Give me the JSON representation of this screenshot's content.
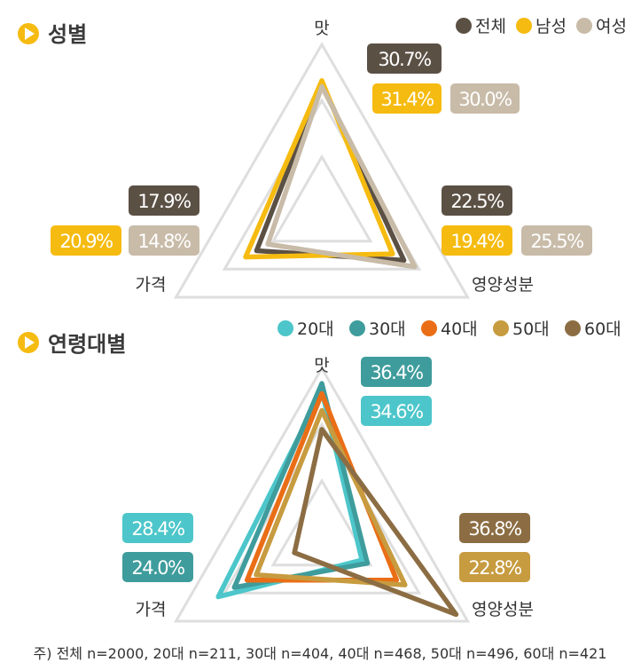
{
  "colors": {
    "total": "#5b5044",
    "male": "#f6bb10",
    "female": "#c8bba8",
    "age20": "#4cc6ca",
    "age30": "#3f9c9c",
    "age40": "#ea6e16",
    "age50": "#c79b3f",
    "age60": "#8c6d43",
    "grid": "#dedede",
    "section_marker": "#f6bb10"
  },
  "sections": {
    "gender_title": "성별",
    "age_title": "연령대별"
  },
  "axes": {
    "taste": "맛",
    "price": "가격",
    "nutrition": "영양성분"
  },
  "note": "주) 전체 n=2000, 20대 n=211, 30대 n=404, 40대 n=468, 50대 n=496, 60대 n=421",
  "chart_data": [
    {
      "type": "radar",
      "title": "성별",
      "categories": [
        "맛",
        "영양성분",
        "가격"
      ],
      "legend_position": "top-right",
      "series": [
        {
          "name": "전체",
          "color": "#5b5044",
          "values": [
            30.7,
            22.5,
            17.9
          ],
          "labels": [
            "30.7%",
            "22.5%",
            "17.9%"
          ]
        },
        {
          "name": "남성",
          "color": "#f6bb10",
          "values": [
            31.4,
            19.4,
            20.9
          ],
          "labels": [
            "31.4%",
            "19.4%",
            "20.9%"
          ]
        },
        {
          "name": "여성",
          "color": "#c8bba8",
          "values": [
            30.0,
            25.5,
            14.8
          ],
          "labels": [
            "30.0%",
            "25.5%",
            "14.8%"
          ]
        }
      ],
      "grid_levels": 3,
      "max": 40
    },
    {
      "type": "radar",
      "title": "연령대별",
      "categories": [
        "맛",
        "영양성분",
        "가격"
      ],
      "legend_position": "top-right",
      "series": [
        {
          "name": "20대",
          "color": "#4cc6ca",
          "values": [
            34.6,
            11.0,
            28.4
          ]
        },
        {
          "name": "30대",
          "color": "#3f9c9c",
          "values": [
            36.4,
            12.5,
            24.0
          ]
        },
        {
          "name": "40대",
          "color": "#ea6e16",
          "values": [
            34.0,
            20.5,
            20.5
          ]
        },
        {
          "name": "50대",
          "color": "#c79b3f",
          "values": [
            30.0,
            22.8,
            18.0
          ]
        },
        {
          "name": "60대",
          "color": "#8c6d43",
          "values": [
            25.5,
            36.8,
            7.5
          ]
        }
      ],
      "value_labels": [
        {
          "series": "30대",
          "axis": "맛",
          "text": "36.4%"
        },
        {
          "series": "20대",
          "axis": "맛",
          "text": "34.6%"
        },
        {
          "series": "20대",
          "axis": "가격",
          "text": "28.4%"
        },
        {
          "series": "30대",
          "axis": "가격",
          "text": "24.0%"
        },
        {
          "series": "60대",
          "axis": "영양성분",
          "text": "36.8%"
        },
        {
          "series": "50대",
          "axis": "영양성분",
          "text": "22.8%"
        }
      ],
      "grid_levels": 3,
      "max": 40
    }
  ]
}
